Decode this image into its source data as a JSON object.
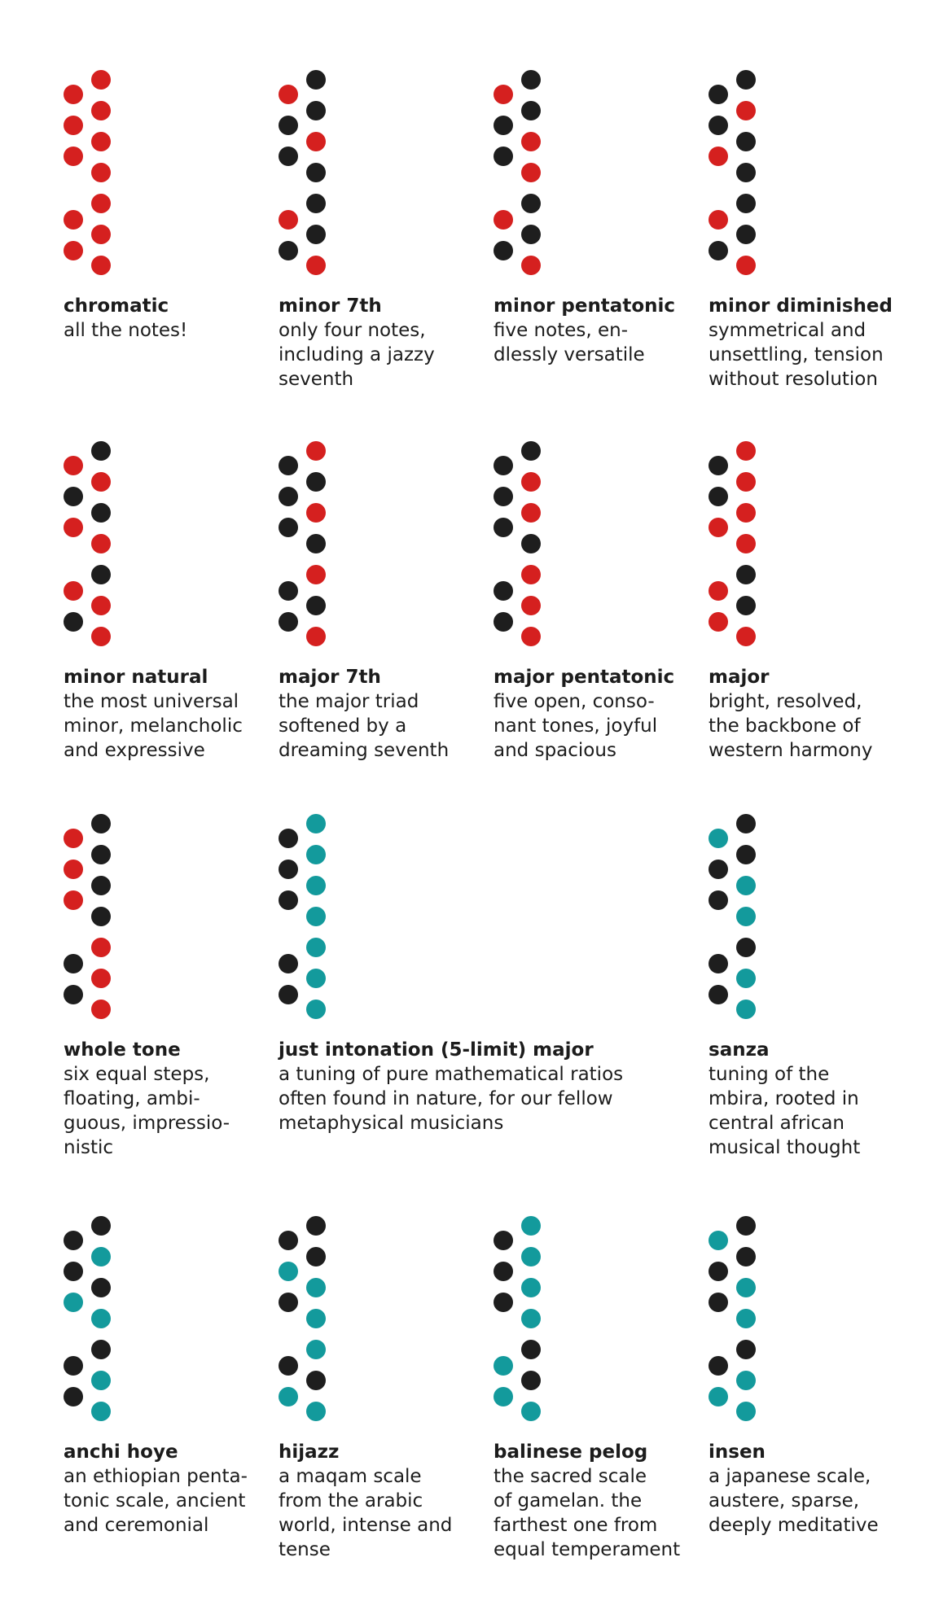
{
  "colors": {
    "red": "#d5201f",
    "black": "#1e1e1e",
    "teal": "#139a9c"
  },
  "scales": [
    {
      "name": "chromatic",
      "desc": "all the notes!",
      "dots": [
        "R",
        "R",
        "R",
        "R",
        "R",
        "R",
        "R",
        "R",
        "R",
        "R",
        "R",
        "R"
      ]
    },
    {
      "name": "minor 7th",
      "desc": "only four notes,\nincluding a jazzy\nseventh",
      "dots": [
        "K",
        "R",
        "K",
        "K",
        "R",
        "K",
        "K",
        "K",
        "R",
        "K",
        "K",
        "R"
      ]
    },
    {
      "name": "minor pentatonic",
      "desc": "five notes, en-\ndlessly versatile",
      "dots": [
        "K",
        "R",
        "K",
        "K",
        "R",
        "K",
        "R",
        "K",
        "R",
        "K",
        "K",
        "R"
      ]
    },
    {
      "name": "minor diminished",
      "desc": "symmetrical and\nunsettling, tension\nwithout resolution",
      "dots": [
        "K",
        "K",
        "R",
        "K",
        "K",
        "R",
        "K",
        "K",
        "R",
        "K",
        "K",
        "R"
      ]
    },
    {
      "name": "minor natural",
      "desc": "the most universal\nminor, melancholic\nand expressive",
      "dots": [
        "K",
        "R",
        "R",
        "K",
        "K",
        "R",
        "R",
        "K",
        "R",
        "R",
        "K",
        "R"
      ]
    },
    {
      "name": "major 7th",
      "desc": "the major triad\nsoftened by a\ndreaming seventh",
      "dots": [
        "R",
        "K",
        "K",
        "K",
        "R",
        "K",
        "K",
        "R",
        "K",
        "K",
        "K",
        "R"
      ]
    },
    {
      "name": "major pentatonic",
      "desc": "five open, conso-\nnant tones, joyful\nand spacious",
      "dots": [
        "K",
        "K",
        "R",
        "K",
        "R",
        "K",
        "K",
        "R",
        "K",
        "R",
        "K",
        "R"
      ]
    },
    {
      "name": "major",
      "desc": "bright, resolved,\nthe backbone of\nwestern harmony",
      "dots": [
        "R",
        "K",
        "R",
        "K",
        "R",
        "R",
        "R",
        "K",
        "R",
        "K",
        "R",
        "R"
      ]
    },
    {
      "name": "whole tone",
      "desc": "six equal steps,\nfloating, ambi-\nguous, impressio-\nnistic",
      "dots": [
        "K",
        "R",
        "K",
        "R",
        "K",
        "R",
        "K",
        "R",
        "K",
        "R",
        "K",
        "R"
      ]
    },
    {
      "name": "just intonation (5-limit) major",
      "desc": "a tuning of pure mathematical ratios\noften found in nature, for our fellow\nmetaphysical musicians",
      "dots": [
        "T",
        "K",
        "T",
        "K",
        "T",
        "K",
        "T",
        "T",
        "K",
        "T",
        "K",
        "T"
      ]
    },
    {
      "name": "sanza",
      "desc": "tuning of the\nmbira, rooted in\ncentral african\nmusical thought",
      "dots": [
        "K",
        "T",
        "K",
        "K",
        "T",
        "K",
        "T",
        "K",
        "K",
        "T",
        "K",
        "T"
      ]
    },
    {
      "name": "anchi hoye",
      "desc": "an ethiopian penta-\ntonic scale, ancient\nand ceremonial",
      "dots": [
        "K",
        "K",
        "T",
        "K",
        "K",
        "T",
        "T",
        "K",
        "K",
        "T",
        "K",
        "T"
      ]
    },
    {
      "name": "hijazz",
      "desc": "a maqam scale\nfrom the arabic\nworld, intense and\ntense",
      "dots": [
        "K",
        "K",
        "K",
        "T",
        "T",
        "K",
        "T",
        "T",
        "K",
        "K",
        "T",
        "T"
      ]
    },
    {
      "name": "balinese pelog",
      "desc": "the sacred scale\nof gamelan. the\nfarthest one from\nequal temperament",
      "dots": [
        "T",
        "K",
        "T",
        "K",
        "T",
        "K",
        "T",
        "K",
        "T",
        "K",
        "T",
        "T"
      ]
    },
    {
      "name": "insen",
      "desc": "a japanese scale,\naustere, sparse,\ndeeply meditative",
      "dots": [
        "K",
        "T",
        "K",
        "K",
        "T",
        "K",
        "T",
        "K",
        "K",
        "T",
        "T",
        "T"
      ]
    }
  ]
}
